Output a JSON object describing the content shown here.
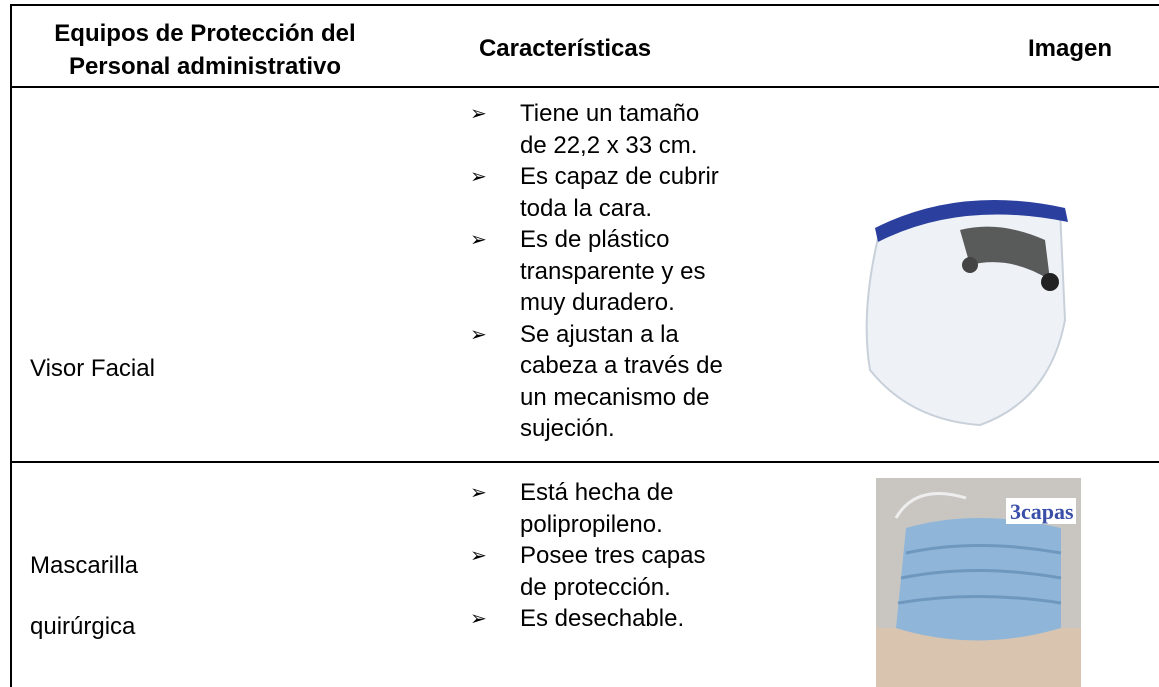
{
  "table": {
    "header": [
      "Equipos de Protección del Personal administrativo",
      "Características",
      "Imagen"
    ],
    "rows": [
      {
        "item": "Visor Facial",
        "features": [
          "Tiene un tamaño de 22,2 x 33 cm.",
          "Es capaz de cubrir toda la cara.",
          "Es de plástico transparente y es muy duradero.",
          "Se ajustan a la cabeza a través de un mecanismo de sujeción."
        ]
      },
      {
        "item": "Mascarilla quirúrgica",
        "features": [
          "Está hecha de polipropileno.",
          "Posee tres capas de protección.",
          "Es desechable."
        ],
        "image_text": "3capas"
      }
    ]
  }
}
